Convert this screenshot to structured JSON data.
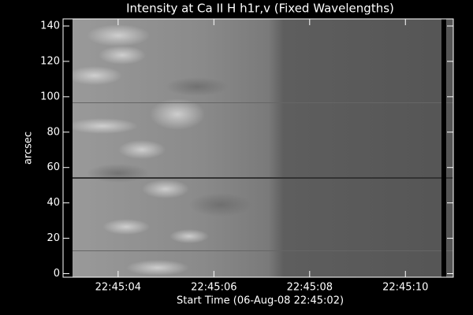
{
  "chart_data": {
    "type": "image",
    "title": "Intensity at Ca II H h1r,v (Fixed Wavelengths)",
    "x_label": "Start Time (06-Aug-08 22:45:02)",
    "y_label": "arcsec",
    "xlim": [
      2.85,
      11
    ],
    "xticks": [
      {
        "value": 4,
        "label": "22:45:04"
      },
      {
        "value": 6,
        "label": "22:45:06"
      },
      {
        "value": 8,
        "label": "22:45:08"
      },
      {
        "value": 10,
        "label": "22:45:10"
      }
    ],
    "ylim": [
      -2,
      144
    ],
    "yticks": [
      0,
      20,
      40,
      60,
      80,
      100,
      120,
      140
    ]
  }
}
